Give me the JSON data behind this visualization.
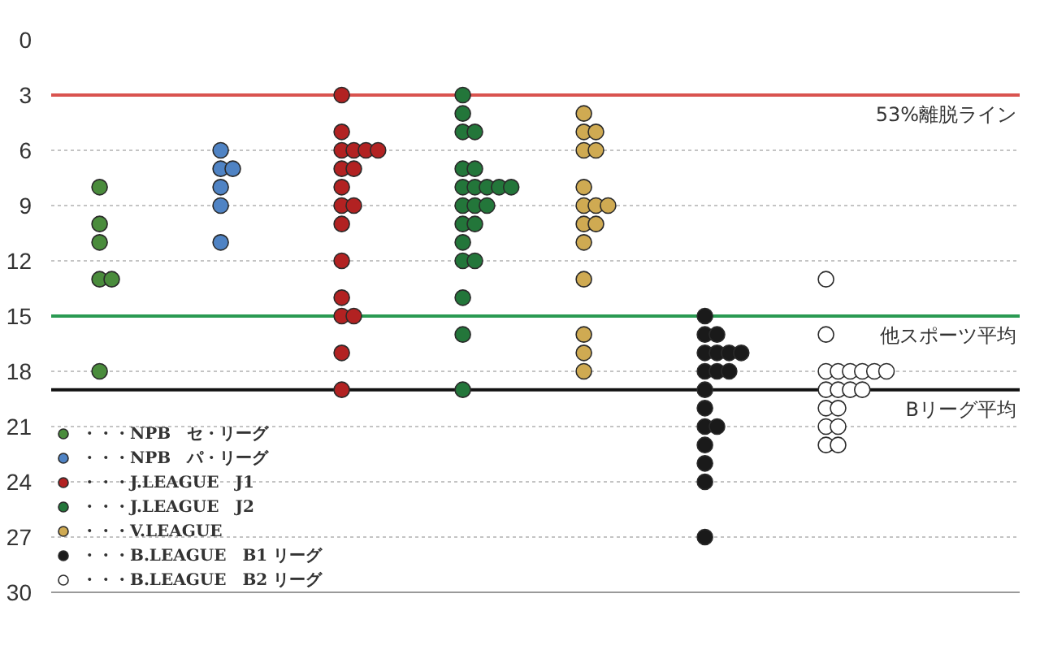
{
  "chart_data": {
    "type": "scatter",
    "marker": "circle",
    "grid": "y",
    "legend": "bottom left",
    "tick_labels": "y",
    "categories": [
      null,
      null,
      null,
      null,
      null,
      null,
      null,
      null
    ],
    "ylim": [
      30,
      0
    ],
    "yticks": [
      0,
      3,
      6,
      9,
      12,
      15,
      18,
      21,
      24,
      27,
      30
    ],
    "series": [
      {
        "name": "・・・NPB　セ・リーグ",
        "color": "#4a8c3c",
        "values": [
          8,
          null,
          null,
          null,
          null,
          null,
          null,
          null
        ]
      },
      {
        "name": "・・・NPB　パ・リーグ",
        "color": "#4f83c4",
        "values": [
          null,
          6,
          null,
          null,
          null,
          null,
          null,
          null
        ]
      },
      {
        "name": "・・・J.LEAGUE　J1",
        "color": "#b22222",
        "values": [
          null,
          null,
          3,
          null,
          null,
          null,
          null,
          null
        ]
      },
      {
        "name": "・・・J.LEAGUE　J2",
        "color": "#23763a",
        "values": [
          null,
          null,
          null,
          3,
          null,
          null,
          null,
          null
        ]
      },
      {
        "name": "・・・V.LEAGUE",
        "color": "#cfaa52",
        "values": [
          null,
          null,
          null,
          null,
          4,
          null,
          null,
          null
        ]
      },
      {
        "name": "・・・B.LEAGUE　B1 リーグ",
        "color": "#1a1a1a",
        "values": [
          null,
          null,
          null,
          null,
          null,
          15,
          null,
          null
        ]
      },
      {
        "name": "・・・B.LEAGUE　B2 リーグ",
        "color": "#ffffff",
        "values": [
          null,
          null,
          null,
          null,
          null,
          null,
          13,
          null
        ]
      },
      {
        "colors": [
          "#4a8c3c",
          "#4f83c4",
          "#b22222",
          "#23763a",
          "#cfaa52",
          "#1a1a1a",
          "#ffffff",
          null
        ],
        "values": [
          10,
          7,
          5,
          4,
          5,
          16,
          16,
          null
        ]
      },
      {
        "colors": [
          "#4a8c3c",
          "#4f83c4",
          "#b22222",
          "#23763a",
          "#cfaa52",
          "#1a1a1a",
          "#ffffff",
          null
        ],
        "values": [
          11,
          7,
          6,
          5,
          5,
          16,
          18,
          null
        ]
      },
      {
        "colors": [
          "#4a8c3c",
          "#4f83c4",
          "#b22222",
          "#23763a",
          "#cfaa52",
          "#1a1a1a",
          "#ffffff",
          null
        ],
        "values": [
          13,
          8,
          6,
          5,
          6,
          17,
          18,
          null
        ]
      },
      {
        "colors": [
          "#4a8c3c",
          "#4f83c4",
          "#b22222",
          "#23763a",
          "#cfaa52",
          "#1a1a1a",
          "#ffffff",
          null
        ],
        "values": [
          13,
          9,
          6,
          7,
          6,
          17,
          18,
          null
        ]
      },
      {
        "colors": [
          "#4a8c3c",
          "#4f83c4",
          "#b22222",
          "#23763a",
          "#cfaa52",
          "#1a1a1a",
          "#ffffff",
          null
        ],
        "values": [
          18,
          11,
          6,
          7,
          8,
          17,
          18,
          null
        ]
      },
      {
        "colors": [
          null,
          null,
          "#b22222",
          "#23763a",
          "#cfaa52",
          "#1a1a1a",
          "#ffffff",
          null
        ],
        "values": [
          null,
          null,
          7,
          8,
          9,
          17,
          18,
          null
        ]
      },
      {
        "colors": [
          null,
          null,
          "#b22222",
          "#23763a",
          "#cfaa52",
          "#1a1a1a",
          "#ffffff",
          null
        ],
        "values": [
          null,
          null,
          7,
          8,
          9,
          18,
          18,
          null
        ]
      },
      {
        "colors": [
          null,
          null,
          "#b22222",
          "#23763a",
          "#cfaa52",
          "#1a1a1a",
          "#ffffff",
          null
        ],
        "values": [
          null,
          null,
          8,
          8,
          9,
          18,
          19,
          null
        ]
      },
      {
        "colors": [
          null,
          null,
          "#b22222",
          "#23763a",
          "#cfaa52",
          "#1a1a1a",
          "#ffffff",
          null
        ],
        "values": [
          null,
          null,
          9,
          8,
          10,
          18,
          19,
          null
        ]
      },
      {
        "colors": [
          null,
          null,
          "#b22222",
          "#23763a",
          "#cfaa52",
          "#1a1a1a",
          "#ffffff",
          null
        ],
        "values": [
          null,
          null,
          9,
          8,
          10,
          19,
          19,
          null
        ]
      },
      {
        "colors": [
          null,
          null,
          "#b22222",
          "#23763a",
          "#cfaa52",
          "#1a1a1a",
          "#ffffff",
          null
        ],
        "values": [
          null,
          null,
          10,
          9,
          11,
          20,
          19,
          null
        ]
      },
      {
        "colors": [
          null,
          null,
          "#b22222",
          "#23763a",
          "#cfaa52",
          "#1a1a1a",
          "#ffffff",
          null
        ],
        "values": [
          null,
          null,
          12,
          9,
          13,
          21,
          20,
          null
        ]
      },
      {
        "colors": [
          null,
          null,
          "#b22222",
          "#23763a",
          "#cfaa52",
          "#1a1a1a",
          "#ffffff",
          null
        ],
        "values": [
          null,
          null,
          14,
          9,
          16,
          21,
          20,
          null
        ]
      },
      {
        "colors": [
          null,
          null,
          "#b22222",
          "#23763a",
          "#cfaa52",
          "#1a1a1a",
          "#ffffff",
          null
        ],
        "values": [
          null,
          null,
          15,
          10,
          17,
          22,
          21,
          null
        ]
      },
      {
        "colors": [
          null,
          null,
          "#b22222",
          "#23763a",
          "#cfaa52",
          "#1a1a1a",
          "#ffffff",
          null
        ],
        "values": [
          null,
          null,
          15,
          10,
          18,
          23,
          21,
          null
        ]
      },
      {
        "colors": [
          null,
          null,
          "#b22222",
          "#23763a",
          null,
          "#1a1a1a",
          "#ffffff",
          null
        ],
        "values": [
          null,
          null,
          17,
          11,
          null,
          24,
          22,
          null
        ]
      },
      {
        "colors": [
          null,
          null,
          "#b22222",
          "#23763a",
          null,
          "#1a1a1a",
          "#ffffff",
          null
        ],
        "values": [
          null,
          null,
          19,
          12,
          null,
          27,
          22,
          null
        ]
      },
      {
        "colors": [
          null,
          null,
          null,
          "#23763a",
          null,
          null,
          null,
          null
        ],
        "values": [
          null,
          null,
          null,
          12,
          null,
          null,
          null,
          null
        ]
      },
      {
        "colors": [
          null,
          null,
          null,
          "#23763a",
          null,
          null,
          null,
          null
        ],
        "values": [
          null,
          null,
          null,
          14,
          null,
          null,
          null,
          null
        ]
      },
      {
        "colors": [
          null,
          null,
          null,
          "#23763a",
          null,
          null,
          null,
          null
        ],
        "values": [
          null,
          null,
          null,
          16,
          null,
          null,
          null,
          null
        ]
      },
      {
        "colors": [
          null,
          null,
          null,
          "#23763a",
          null,
          null,
          null,
          null
        ],
        "values": [
          null,
          null,
          null,
          19,
          null,
          null,
          null,
          null
        ]
      }
    ],
    "ref_lines": [
      {
        "axis": "y",
        "value": 3,
        "label": "53%離脱ライン",
        "color": "#d9534f"
      },
      {
        "axis": "y",
        "value": 15,
        "label": "他スポーツ平均",
        "color": "#2a9a52"
      },
      {
        "axis": "y",
        "value": 19,
        "label": "Bリーグ平均",
        "color": "#111111"
      }
    ]
  }
}
